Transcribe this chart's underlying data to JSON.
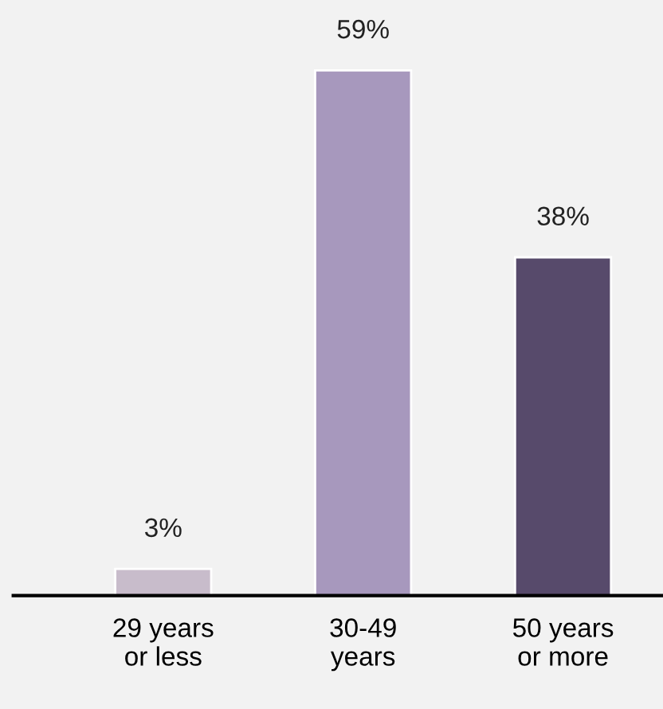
{
  "chart_data": {
    "type": "bar",
    "categories": [
      "29 years\nor less",
      "30-49\nyears",
      "50 years\nor more"
    ],
    "values": [
      3,
      59,
      38
    ],
    "colors": [
      "#c8bccb",
      "#a798bd",
      "#574a6b"
    ],
    "value_labels": [
      "3%",
      "59%",
      "38%"
    ],
    "grid": false,
    "legend": false
  }
}
